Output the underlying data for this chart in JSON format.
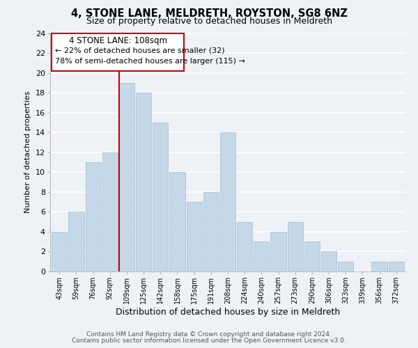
{
  "title": "4, STONE LANE, MELDRETH, ROYSTON, SG8 6NZ",
  "subtitle": "Size of property relative to detached houses in Meldreth",
  "xlabel": "Distribution of detached houses by size in Meldreth",
  "ylabel": "Number of detached properties",
  "categories": [
    "43sqm",
    "59sqm",
    "76sqm",
    "92sqm",
    "109sqm",
    "125sqm",
    "142sqm",
    "158sqm",
    "175sqm",
    "191sqm",
    "208sqm",
    "224sqm",
    "240sqm",
    "257sqm",
    "273sqm",
    "290sqm",
    "306sqm",
    "323sqm",
    "339sqm",
    "356sqm",
    "372sqm"
  ],
  "values": [
    4,
    6,
    11,
    12,
    19,
    18,
    15,
    10,
    7,
    8,
    14,
    5,
    3,
    4,
    5,
    3,
    2,
    1,
    0,
    1,
    1
  ],
  "bar_color": "#c5d8e8",
  "bar_edge_color": "#a8c4d8",
  "highlight_index": 4,
  "highlight_line_color": "#cc0000",
  "ylim": [
    0,
    24
  ],
  "yticks": [
    0,
    2,
    4,
    6,
    8,
    10,
    12,
    14,
    16,
    18,
    20,
    22,
    24
  ],
  "annotation_line1": "4 STONE LANE: 108sqm",
  "annotation_line2": "← 22% of detached houses are smaller (32)",
  "annotation_line3": "78% of semi-detached houses are larger (115) →",
  "annotation_box_edge": "#cc0000",
  "footer_line1": "Contains HM Land Registry data © Crown copyright and database right 2024.",
  "footer_line2": "Contains public sector information licensed under the Open Government Licence v3.0.",
  "background_color": "#eef2f7",
  "grid_color": "#ffffff"
}
